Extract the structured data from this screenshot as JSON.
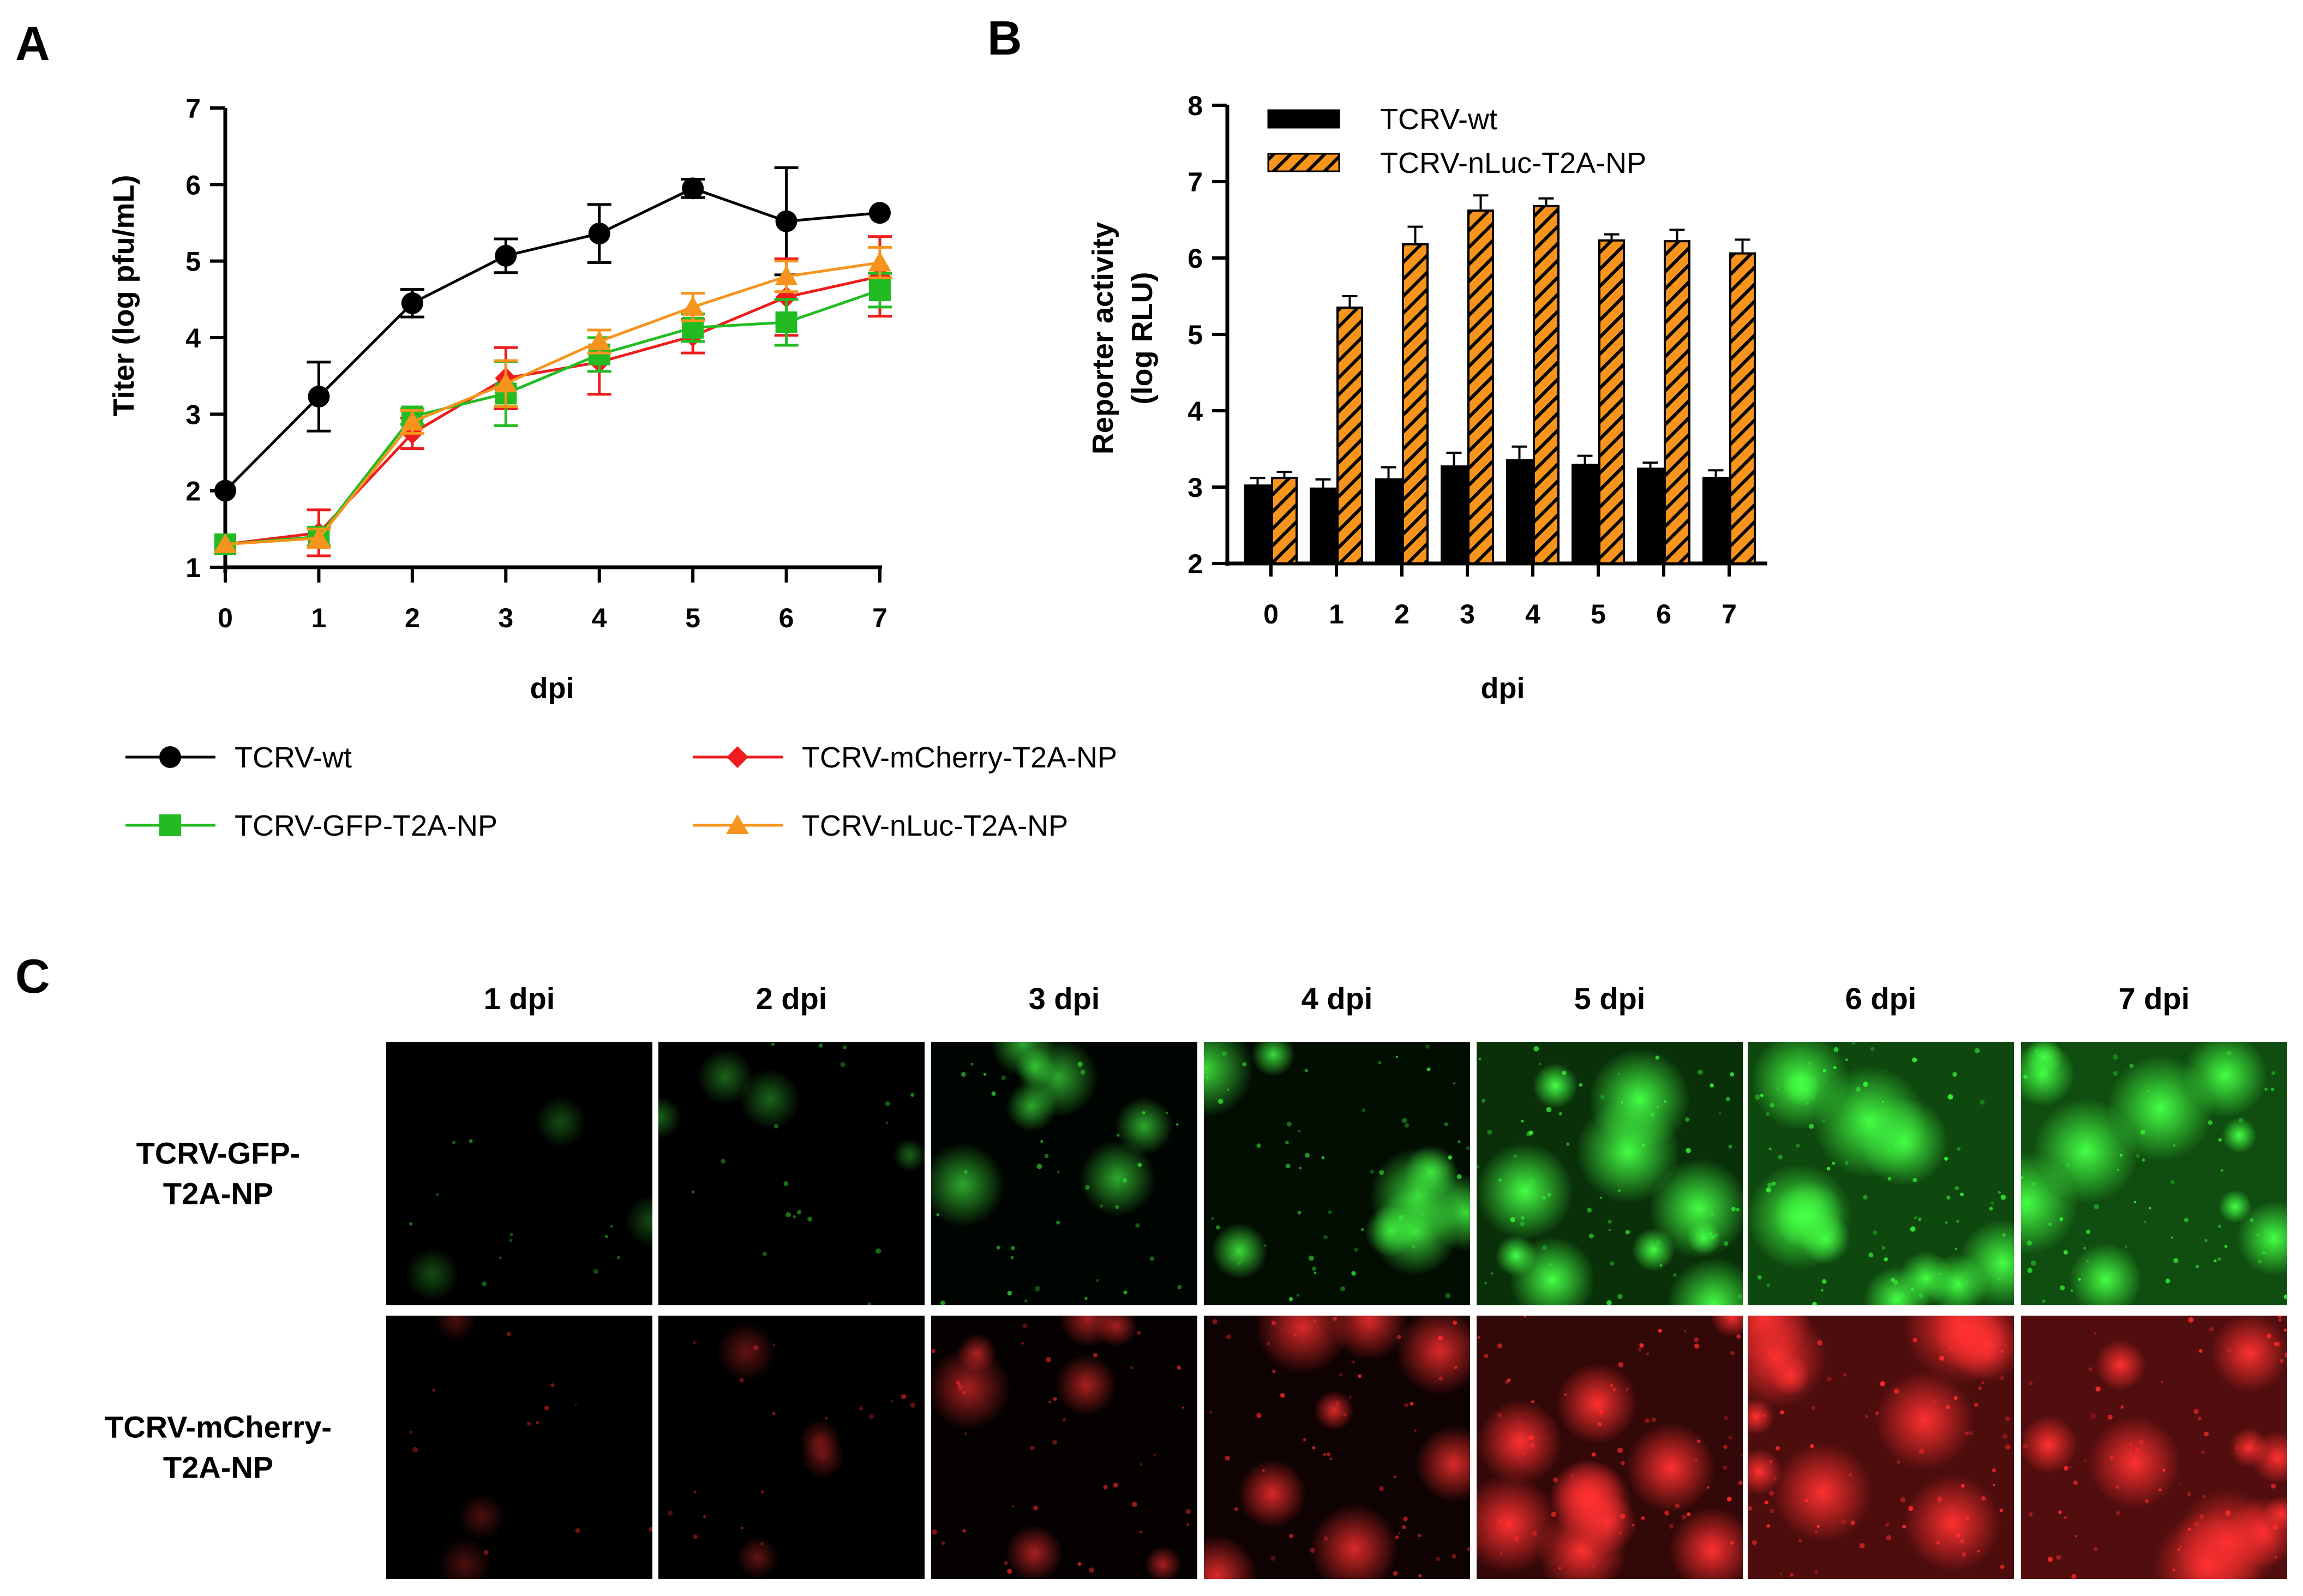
{
  "panels": {
    "a": "A",
    "b": "B",
    "c": "C"
  },
  "chart_data": [
    {
      "id": "A",
      "type": "line",
      "xlabel": "dpi",
      "ylabel": "Titer (log pfu/mL)",
      "x": [
        0,
        1,
        2,
        3,
        4,
        5,
        6,
        7
      ],
      "xticks": [
        "0",
        "1",
        "2",
        "3",
        "4",
        "5",
        "6",
        "7"
      ],
      "yticks": [
        "1",
        "2",
        "3",
        "4",
        "5",
        "6",
        "7"
      ],
      "xlim": [
        0,
        7
      ],
      "ylim": [
        1,
        7
      ],
      "legend_position": "bottom",
      "series": [
        {
          "name": "TCRV-wt",
          "marker": "circle",
          "color": "#000000",
          "values": [
            2.0,
            3.23,
            4.45,
            5.07,
            5.36,
            5.95,
            5.52,
            5.63
          ],
          "errors": [
            0.0,
            0.45,
            0.18,
            0.22,
            0.38,
            0.12,
            0.7,
            0.0
          ]
        },
        {
          "name": "TCRV-mCherry-T2A-NP",
          "marker": "diamond",
          "color": "#ee1c1c",
          "values": [
            1.3,
            1.45,
            2.75,
            3.47,
            3.68,
            4.02,
            4.53,
            4.8
          ],
          "errors": [
            0.0,
            0.3,
            0.2,
            0.4,
            0.42,
            0.22,
            0.5,
            0.52
          ]
        },
        {
          "name": "TCRV-GFP-T2A-NP",
          "marker": "square",
          "color": "#22bb22",
          "values": [
            1.3,
            1.4,
            2.97,
            3.27,
            3.78,
            4.13,
            4.2,
            4.62
          ],
          "errors": [
            0.0,
            0.12,
            0.1,
            0.42,
            0.22,
            0.18,
            0.3,
            0.22
          ]
        },
        {
          "name": "TCRV-nLuc-T2A-NP",
          "marker": "triangle",
          "color": "#f7941d",
          "values": [
            1.3,
            1.38,
            2.9,
            3.4,
            3.95,
            4.4,
            4.8,
            4.98
          ],
          "errors": [
            0.0,
            0.12,
            0.15,
            0.3,
            0.15,
            0.18,
            0.2,
            0.2
          ]
        }
      ]
    },
    {
      "id": "B",
      "type": "bar",
      "xlabel": "dpi",
      "ylabel": [
        "Reporter activity",
        "(log RLU)"
      ],
      "categories": [
        "0",
        "1",
        "2",
        "3",
        "4",
        "5",
        "6",
        "7"
      ],
      "yticks": [
        "2",
        "3",
        "4",
        "5",
        "6",
        "7",
        "8"
      ],
      "ylim": [
        2,
        8
      ],
      "legend_position": "top-left",
      "series": [
        {
          "name": "TCRV-wt",
          "color": "#000000",
          "fill": "solid",
          "values": [
            3.02,
            2.98,
            3.1,
            3.27,
            3.35,
            3.29,
            3.24,
            3.12
          ],
          "errors": [
            0.1,
            0.12,
            0.16,
            0.18,
            0.18,
            0.12,
            0.08,
            0.1
          ]
        },
        {
          "name": "TCRV-nLuc-T2A-NP",
          "color": "#f7941d",
          "fill": "hatched",
          "values": [
            3.12,
            5.35,
            6.18,
            6.62,
            6.68,
            6.23,
            6.22,
            6.06
          ],
          "errors": [
            0.08,
            0.15,
            0.23,
            0.2,
            0.1,
            0.08,
            0.15,
            0.18
          ]
        }
      ]
    }
  ],
  "micrographs": {
    "columns": [
      "1 dpi",
      "2 dpi",
      "3 dpi",
      "4 dpi",
      "5 dpi",
      "6 dpi",
      "7 dpi"
    ],
    "rows": [
      {
        "lines": [
          "TCRV-GFP-",
          "T2A-NP"
        ],
        "hue": "green",
        "bright": "#33ee33"
      },
      {
        "lines": [
          "TCRV-mCherry-",
          "T2A-NP"
        ],
        "hue": "red",
        "bright": "#ff2a2a"
      }
    ],
    "intensity": [
      0.05,
      0.14,
      0.4,
      0.6,
      0.82,
      0.9,
      0.78
    ],
    "background": [
      0.0,
      0.0,
      0.02,
      0.06,
      0.2,
      0.3,
      0.32
    ]
  }
}
